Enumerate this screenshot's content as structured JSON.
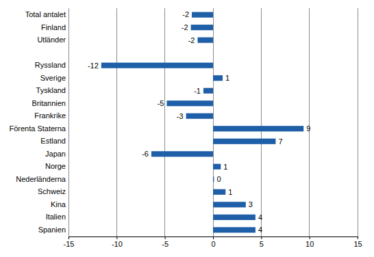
{
  "chart_data": {
    "type": "bar",
    "orientation": "horizontal",
    "categories": [
      "Total antalet",
      "Finland",
      "Utländer",
      null,
      "Ryssland",
      "Sverige",
      "Tyskland",
      "Britannien",
      "Frankrike",
      "Förenta Staterna",
      "Estland",
      "Japan",
      "Norge",
      "Nederländerna",
      "Schweiz",
      "Kina",
      "Italien",
      "Spanien"
    ],
    "values": [
      -2.2,
      -2.3,
      -1.6,
      null,
      -11.6,
      1.0,
      -1.0,
      -4.8,
      -2.8,
      9.4,
      6.5,
      -6.4,
      0.8,
      0.1,
      1.3,
      3.4,
      4.4,
      4.4
    ],
    "value_labels": [
      "-2",
      "-2",
      "-2",
      null,
      "-12",
      "1",
      "-1",
      "-5",
      "-3",
      "9",
      "7",
      "-6",
      "1",
      "0",
      "1",
      "3",
      "4",
      "4"
    ],
    "data_labels": true,
    "color": "#1f5fa8",
    "xlim": [
      -15,
      15
    ],
    "xticks": [
      -15,
      -10,
      -5,
      0,
      5,
      10,
      15
    ],
    "grid": true
  }
}
